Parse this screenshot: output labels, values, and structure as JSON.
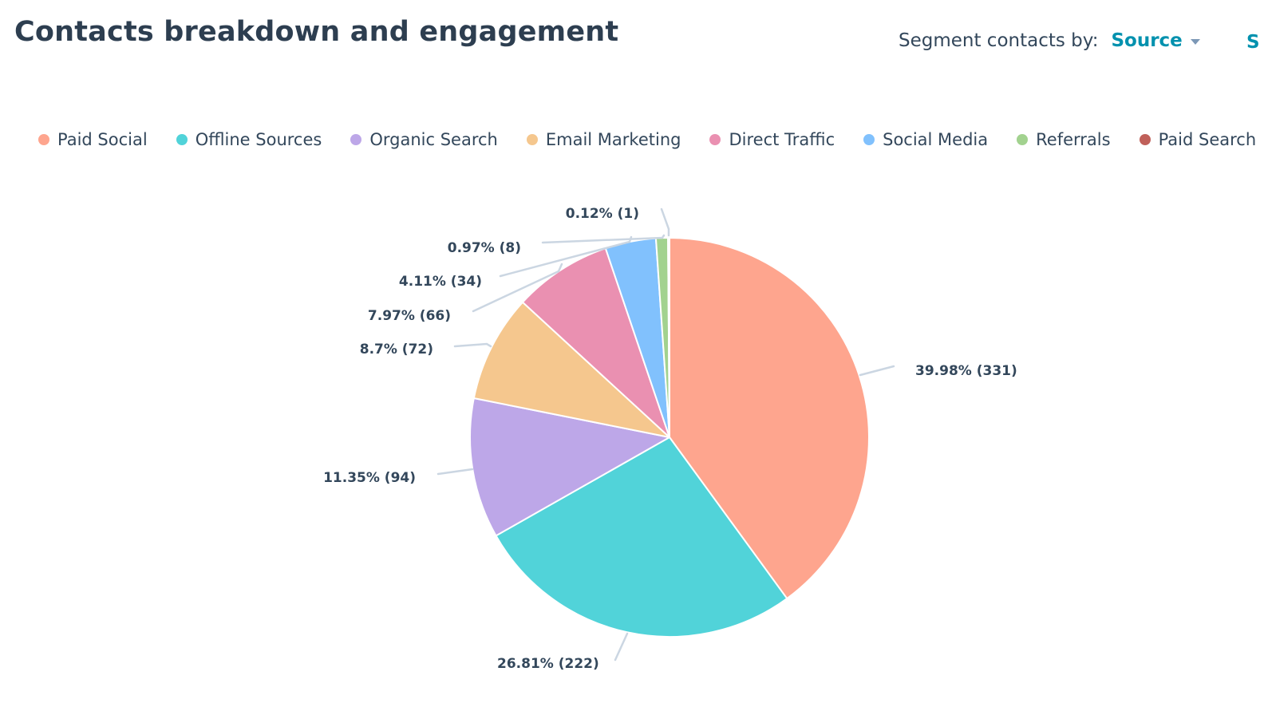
{
  "header": {
    "title": "Contacts breakdown and engagement",
    "segment_label": "Segment contacts by:",
    "segment_value": "Source",
    "edge_glyph": "S"
  },
  "colors": {
    "accent": "#0091ae",
    "text": "#33475b",
    "leader": "#cbd6e2"
  },
  "legend": {
    "items": [
      {
        "label": "Paid Social",
        "color": "#fea58e"
      },
      {
        "label": "Offline Sources",
        "color": "#51d3d9"
      },
      {
        "label": "Organic Search",
        "color": "#bda7e8"
      },
      {
        "label": "Email Marketing",
        "color": "#f5c78e"
      },
      {
        "label": "Direct Traffic",
        "color": "#ea90b1"
      },
      {
        "label": "Social Media",
        "color": "#81c1fd"
      },
      {
        "label": "Referrals",
        "color": "#a2d28f"
      },
      {
        "label": "Paid Search",
        "color": "#c0605a"
      }
    ]
  },
  "chart_data": {
    "type": "pie",
    "categories": [
      "Paid Social",
      "Offline Sources",
      "Organic Search",
      "Email Marketing",
      "Direct Traffic",
      "Social Media",
      "Referrals",
      "Paid Search"
    ],
    "values": [
      331,
      222,
      94,
      72,
      66,
      34,
      8,
      1
    ],
    "percent_labels": [
      "39.98% (331)",
      "26.81% (222)",
      "11.35% (94)",
      "8.7% (72)",
      "7.97% (66)",
      "4.11% (34)",
      "0.97% (8)",
      "0.12% (1)"
    ],
    "colors": [
      "#fea58e",
      "#51d3d9",
      "#bda7e8",
      "#f5c78e",
      "#ea90b1",
      "#81c1fd",
      "#a2d28f",
      "#c0605a"
    ],
    "legend_position": "top"
  }
}
